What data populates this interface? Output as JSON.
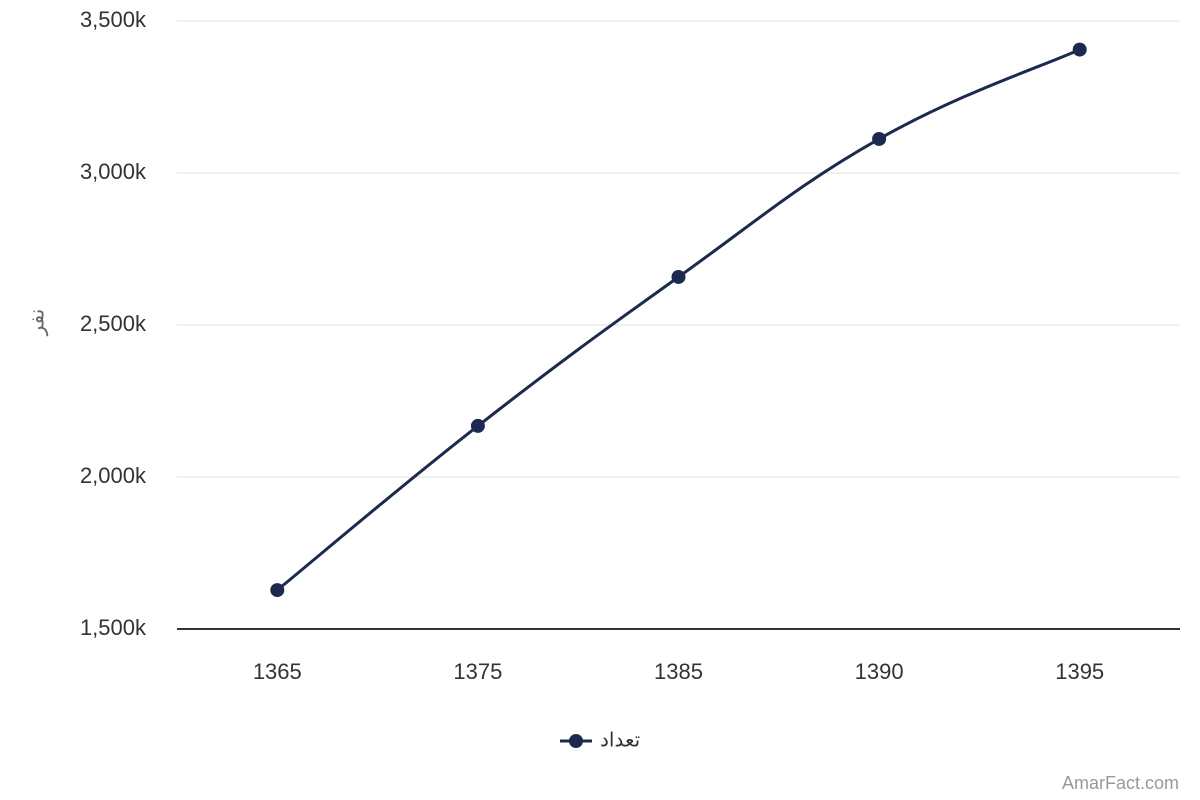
{
  "chart_data": {
    "type": "line",
    "y_label": "نفر",
    "categories": [
      "1365",
      "1375",
      "1385",
      "1390",
      "1395"
    ],
    "series": [
      {
        "name": "تعداد",
        "color": "#1b2a4e",
        "values": [
          1628000,
          2168000,
          2658000,
          3112000,
          3406000
        ]
      }
    ],
    "ylim": [
      1500000,
      3500000
    ],
    "yticks": [
      {
        "value": 1500000,
        "label": "1,500k"
      },
      {
        "value": 2000000,
        "label": "2,000k"
      },
      {
        "value": 2500000,
        "label": "2,500k"
      },
      {
        "value": 3000000,
        "label": "3,000k"
      },
      {
        "value": 3500000,
        "label": "3,500k"
      }
    ],
    "grid": true,
    "legend": "bottom",
    "credit": "AmarFact.com"
  }
}
